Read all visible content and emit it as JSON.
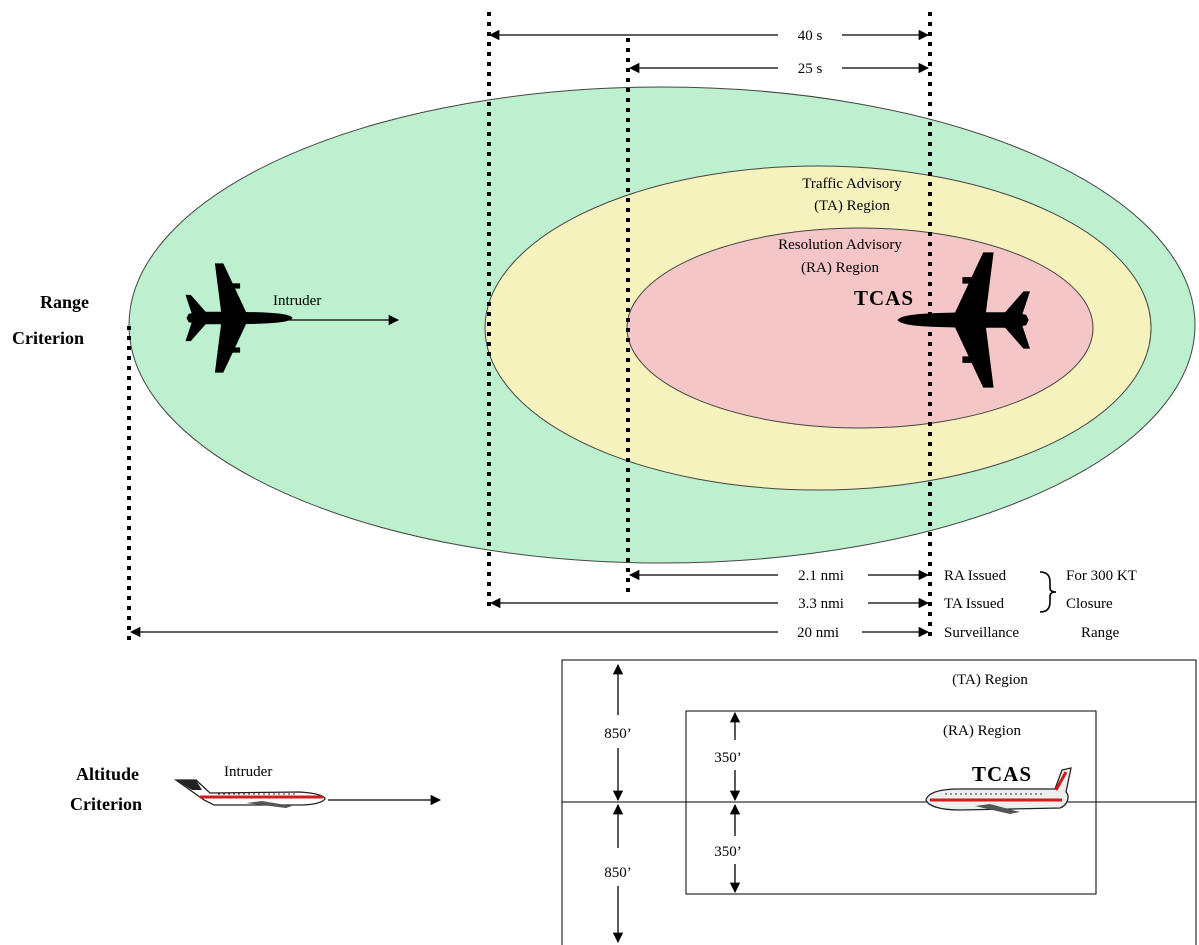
{
  "colors": {
    "surveillance_region": "#bdf0cf",
    "ta_region": "#f5f2bd",
    "ra_region": "#f5c6c8",
    "outline": "#444444",
    "intruder_stripe": "#d21b1b"
  },
  "icons": {
    "top_intruder": "airplane-topview-icon",
    "top_tcas": "airplane-topview-icon",
    "side_intruder": "airplane-sideview-icon",
    "side_tcas": "airplane-sideview-icon"
  },
  "range": {
    "criterion_line1": "Range",
    "criterion_line2": "Criterion",
    "time_40": "40 s",
    "time_25": "25 s",
    "ta_region_line1": "Traffic Advisory",
    "ta_region_line2": "(TA) Region",
    "ra_region_line1": "Resolution Advisory",
    "ra_region_line2": "(RA) Region",
    "tcas_label": "TCAS",
    "intruder_label": "Intruder",
    "dist_ra": "2.1 nmi",
    "dist_ta": "3.3 nmi",
    "dist_surv": "20 nmi",
    "ra_issued": "RA Issued",
    "ta_issued": "TA Issued",
    "surveillance": "Surveillance",
    "range_word": "Range",
    "for_300kt": "For 300 KT",
    "closure": "Closure"
  },
  "altitude": {
    "criterion_line1": "Altitude",
    "criterion_line2": "Criterion",
    "intruder_label": "Intruder",
    "tcas_label": "TCAS",
    "ta_region": "(TA) Region",
    "ra_region": "(RA) Region",
    "ta_upper": "850’",
    "ta_lower": "850’",
    "ra_upper": "350’",
    "ra_lower": "350’"
  }
}
